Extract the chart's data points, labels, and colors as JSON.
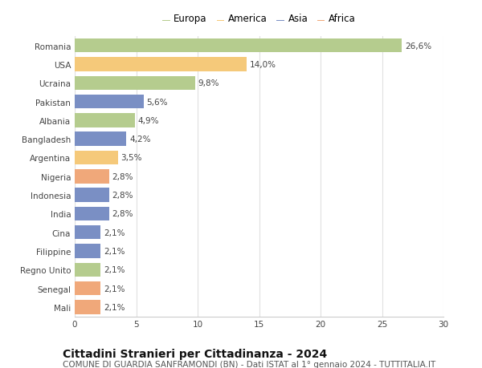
{
  "countries": [
    "Romania",
    "USA",
    "Ucraina",
    "Pakistan",
    "Albania",
    "Bangladesh",
    "Argentina",
    "Nigeria",
    "Indonesia",
    "India",
    "Cina",
    "Filippine",
    "Regno Unito",
    "Senegal",
    "Mali"
  ],
  "values": [
    26.6,
    14.0,
    9.8,
    5.6,
    4.9,
    4.2,
    3.5,
    2.8,
    2.8,
    2.8,
    2.1,
    2.1,
    2.1,
    2.1,
    2.1
  ],
  "labels": [
    "26,6%",
    "14,0%",
    "9,8%",
    "5,6%",
    "4,9%",
    "4,2%",
    "3,5%",
    "2,8%",
    "2,8%",
    "2,8%",
    "2,1%",
    "2,1%",
    "2,1%",
    "2,1%",
    "2,1%"
  ],
  "continents": [
    "Europa",
    "America",
    "Europa",
    "Asia",
    "Europa",
    "Asia",
    "America",
    "Africa",
    "Asia",
    "Asia",
    "Asia",
    "Asia",
    "Europa",
    "Africa",
    "Africa"
  ],
  "colors": {
    "Europa": "#b5cc8e",
    "America": "#f5c97a",
    "Asia": "#7a8fc4",
    "Africa": "#f0a87a"
  },
  "legend_order": [
    "Europa",
    "America",
    "Asia",
    "Africa"
  ],
  "xlim": [
    0,
    30
  ],
  "xticks": [
    0,
    5,
    10,
    15,
    20,
    25,
    30
  ],
  "title": "Cittadini Stranieri per Cittadinanza - 2024",
  "subtitle": "COMUNE DI GUARDIA SANFRAMONDI (BN) - Dati ISTAT al 1° gennaio 2024 - TUTTITALIA.IT",
  "background_color": "#ffffff",
  "bar_height": 0.75,
  "title_fontsize": 10,
  "subtitle_fontsize": 7.5,
  "label_fontsize": 7.5,
  "tick_fontsize": 7.5,
  "legend_fontsize": 8.5
}
